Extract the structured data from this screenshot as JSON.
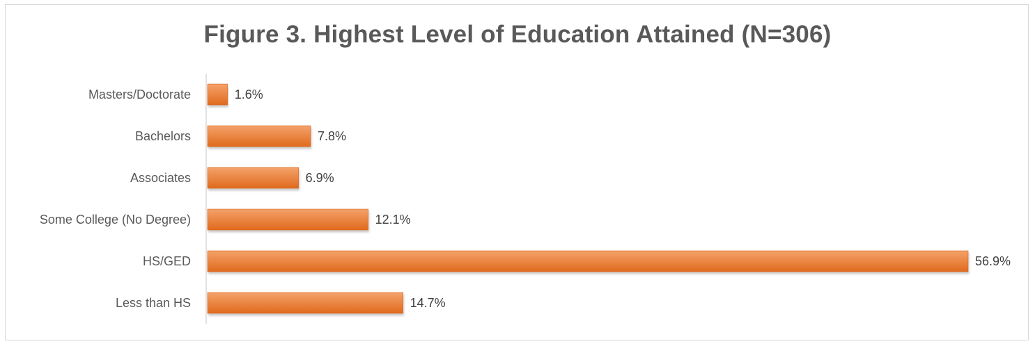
{
  "chart_data": {
    "type": "bar",
    "orientation": "horizontal",
    "title": "Figure 3. Highest Level of Education Attained (N=306)",
    "categories": [
      "Masters/Doctorate",
      "Bachelors",
      "Associates",
      "Some College (No Degree)",
      "HS/GED",
      "Less than HS"
    ],
    "values": [
      1.6,
      7.8,
      6.9,
      12.1,
      56.9,
      14.7
    ],
    "value_labels": [
      "1.6%",
      "7.8%",
      "6.9%",
      "12.1%",
      "56.9%",
      "14.7%"
    ],
    "value_unit": "%",
    "xlim": [
      0,
      56.9
    ],
    "grid": false,
    "legend": "none",
    "colors": {
      "bar_top": "#f4a26a",
      "bar_bottom": "#e06a1e",
      "bar_edge": "#d86418",
      "axis": "#d9d9d9",
      "title": "#595959",
      "text": "#595959"
    }
  }
}
